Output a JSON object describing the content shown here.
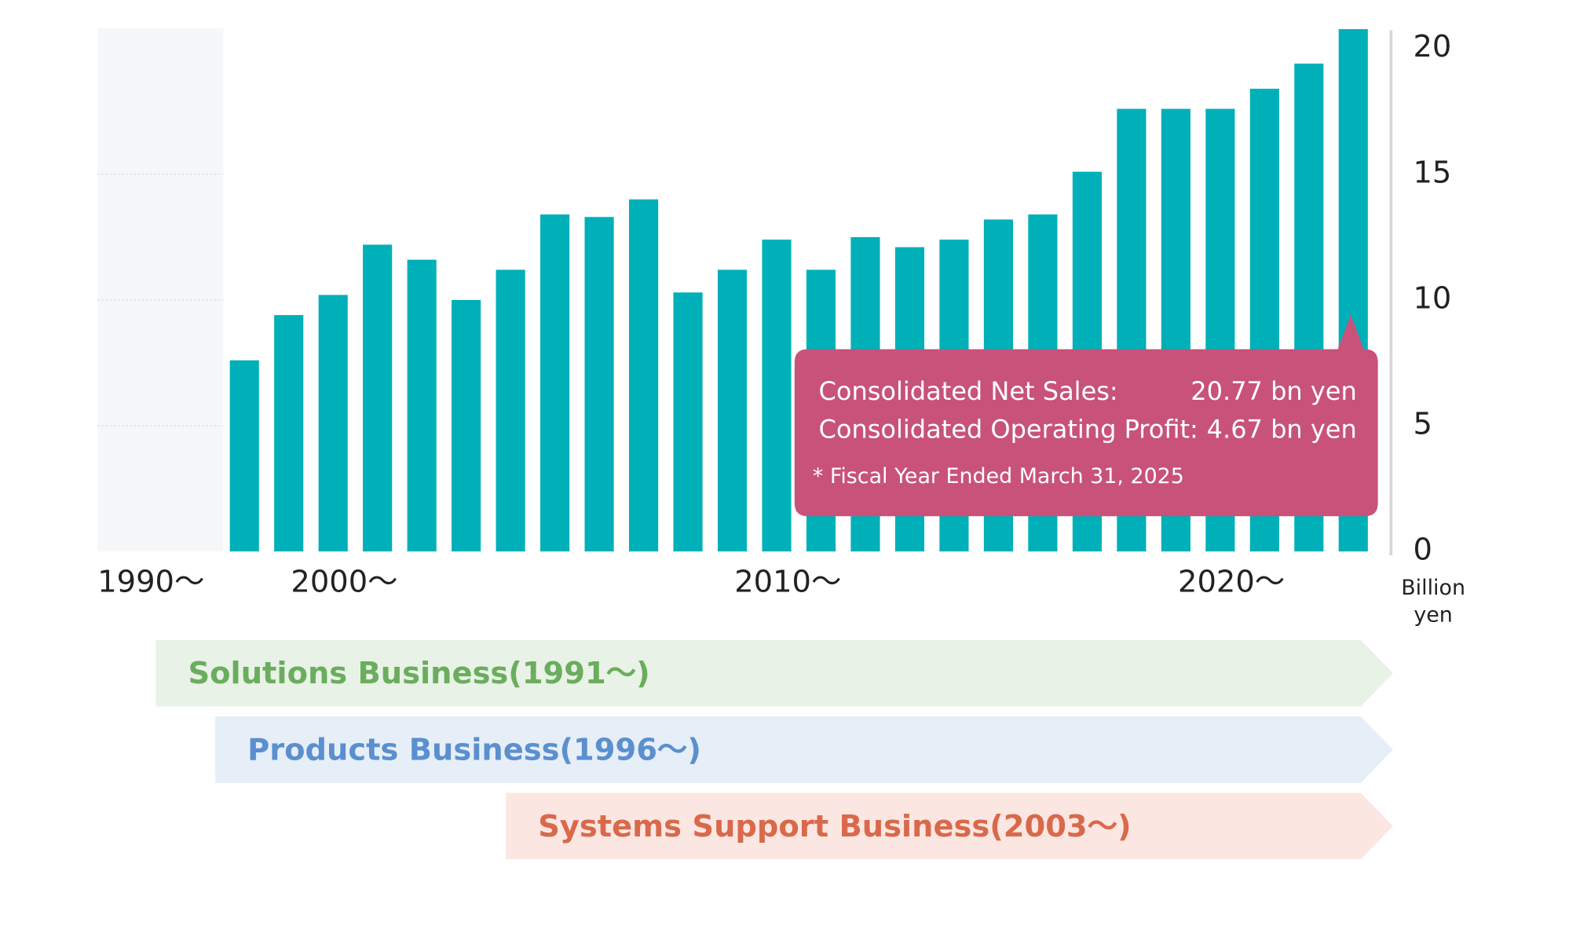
{
  "chart_data": {
    "type": "bar",
    "color": "#00b0b9",
    "categories": [
      null,
      null,
      "2000～",
      null,
      null,
      null,
      null,
      null,
      null,
      null,
      null,
      null,
      "2010～",
      null,
      null,
      null,
      null,
      null,
      null,
      null,
      null,
      null,
      "2020～",
      null,
      null,
      null
    ],
    "values": [
      7.6,
      9.4,
      10.2,
      12.2,
      11.6,
      10.0,
      11.2,
      13.4,
      13.3,
      14.0,
      10.3,
      11.2,
      12.4,
      11.2,
      12.5,
      12.1,
      12.4,
      13.2,
      13.4,
      15.1,
      17.6,
      17.6,
      17.6,
      18.4,
      19.4,
      20.77
    ],
    "period_label": "1990～",
    "ylim": [
      0,
      21
    ],
    "yticks": [
      0,
      5,
      10,
      15,
      20
    ],
    "y_unit": [
      "Billion",
      "yen"
    ],
    "callout": {
      "rows": [
        [
          "Consolidated Net Sales:",
          "20.77 bn yen"
        ],
        [
          "Consolidated Operating Profit:",
          "4.67 bn yen"
        ]
      ],
      "note": "* Fiscal Year Ended March 31, 2025",
      "color": "#c8527a"
    },
    "businesses": [
      {
        "label": "Solutions Business(1991～)",
        "fill": "#e8f2e6",
        "color": "#6aad5e"
      },
      {
        "label": "Products Business(1996～)",
        "fill": "#e6eef8",
        "color": "#5b8fcf"
      },
      {
        "label": "Systems Support Business(2003～)",
        "fill": "#fbe6e2",
        "color": "#d9694a"
      }
    ]
  }
}
